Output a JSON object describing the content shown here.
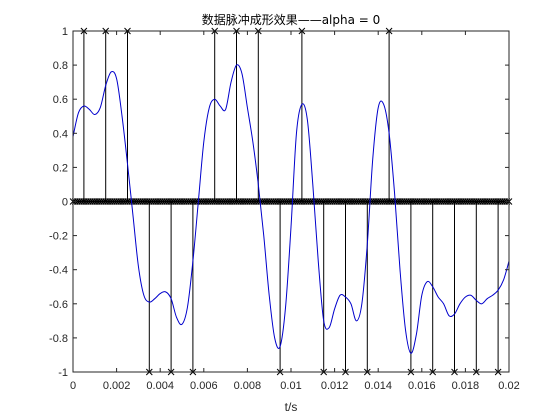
{
  "chart_data": {
    "type": "line",
    "title": "数据脉冲成形效果——alpha = 0",
    "xlabel": "t/s",
    "ylabel": "",
    "xlim": [
      0,
      0.02
    ],
    "ylim": [
      -1,
      1
    ],
    "grid": false,
    "legend": "none",
    "colors": {
      "stem": "#000000",
      "waveform": "#0000cc",
      "axes": "#262626"
    },
    "x_tick_values": [
      0,
      0.002,
      0.004,
      0.006,
      0.008,
      0.01,
      0.012,
      0.014,
      0.016,
      0.018,
      0.02
    ],
    "x_tick_labels": [
      "0",
      "0.002",
      "0.004",
      "0.006",
      "0.008",
      "0.01",
      "0.012",
      "0.014",
      "0.016",
      "0.018",
      "0.02"
    ],
    "y_tick_values": [
      1,
      0.8,
      0.6,
      0.4,
      0.2,
      0,
      -0.2,
      -0.4,
      -0.6,
      -0.8,
      -1
    ],
    "y_tick_labels": [
      "1",
      "0.8",
      "0.6",
      "0.4",
      "0.2",
      "0",
      "-0.2",
      "-0.4",
      "-0.6",
      "-0.8",
      "-1"
    ],
    "symbol_period": 0.001,
    "symbol_times": [
      0.0005,
      0.0015,
      0.0025,
      0.0035,
      0.0045,
      0.0055,
      0.0065,
      0.0075,
      0.0085,
      0.0095,
      0.0105,
      0.0115,
      0.0125,
      0.0135,
      0.0145,
      0.0155,
      0.0165,
      0.0175,
      0.0185,
      0.0195
    ],
    "symbols": [
      1,
      1,
      1,
      -1,
      -1,
      -1,
      1,
      1,
      1,
      -1,
      1,
      -1,
      -1,
      -1,
      1,
      -1,
      -1,
      -1,
      -1,
      -1
    ],
    "series": [
      {
        "x": [
          0,
          0.00025,
          0.0005,
          0.00075,
          0.001,
          0.00125,
          0.0015,
          0.00175,
          0.002,
          0.00225,
          0.0025,
          0.00275,
          0.003,
          0.00325,
          0.0035,
          0.00375,
          0.004,
          0.00425,
          0.0045,
          0.00475,
          0.005,
          0.00525,
          0.0055,
          0.00575,
          0.006,
          0.00625,
          0.0065,
          0.00675,
          0.007,
          0.00725,
          0.0075,
          0.00775,
          0.008,
          0.00825,
          0.0085,
          0.00875,
          0.009,
          0.00925,
          0.0095,
          0.00975,
          0.01,
          0.01025,
          0.0105,
          0.01075,
          0.011,
          0.01125,
          0.0115,
          0.01175,
          0.012,
          0.01225,
          0.0125,
          0.01275,
          0.013,
          0.01325,
          0.0135,
          0.01375,
          0.014,
          0.01425,
          0.0145,
          0.01475,
          0.015,
          0.01525,
          0.0155,
          0.01575,
          0.016,
          0.01625,
          0.0165,
          0.01675,
          0.017,
          0.01725,
          0.0175,
          0.01775,
          0.018,
          0.01825,
          0.0185,
          0.01875,
          0.019,
          0.01925,
          0.0195,
          0.01975,
          0.02
        ],
        "values": [
          0.38,
          0.52,
          0.56,
          0.54,
          0.51,
          0.55,
          0.68,
          0.76,
          0.72,
          0.5,
          0.22,
          -0.08,
          -0.38,
          -0.55,
          -0.59,
          -0.57,
          -0.54,
          -0.53,
          -0.57,
          -0.68,
          -0.72,
          -0.62,
          -0.35,
          0.0,
          0.35,
          0.55,
          0.6,
          0.56,
          0.54,
          0.7,
          0.8,
          0.75,
          0.55,
          0.35,
          0.1,
          -0.2,
          -0.55,
          -0.8,
          -0.85,
          -0.62,
          -0.15,
          0.4,
          0.57,
          0.48,
          0.1,
          -0.35,
          -0.7,
          -0.74,
          -0.63,
          -0.55,
          -0.56,
          -0.6,
          -0.7,
          -0.6,
          -0.25,
          0.25,
          0.55,
          0.57,
          0.4,
          0.05,
          -0.4,
          -0.75,
          -0.89,
          -0.78,
          -0.55,
          -0.47,
          -0.5,
          -0.56,
          -0.6,
          -0.67,
          -0.66,
          -0.6,
          -0.56,
          -0.55,
          -0.58,
          -0.6,
          -0.57,
          -0.55,
          -0.52,
          -0.46,
          -0.35
        ]
      }
    ]
  }
}
